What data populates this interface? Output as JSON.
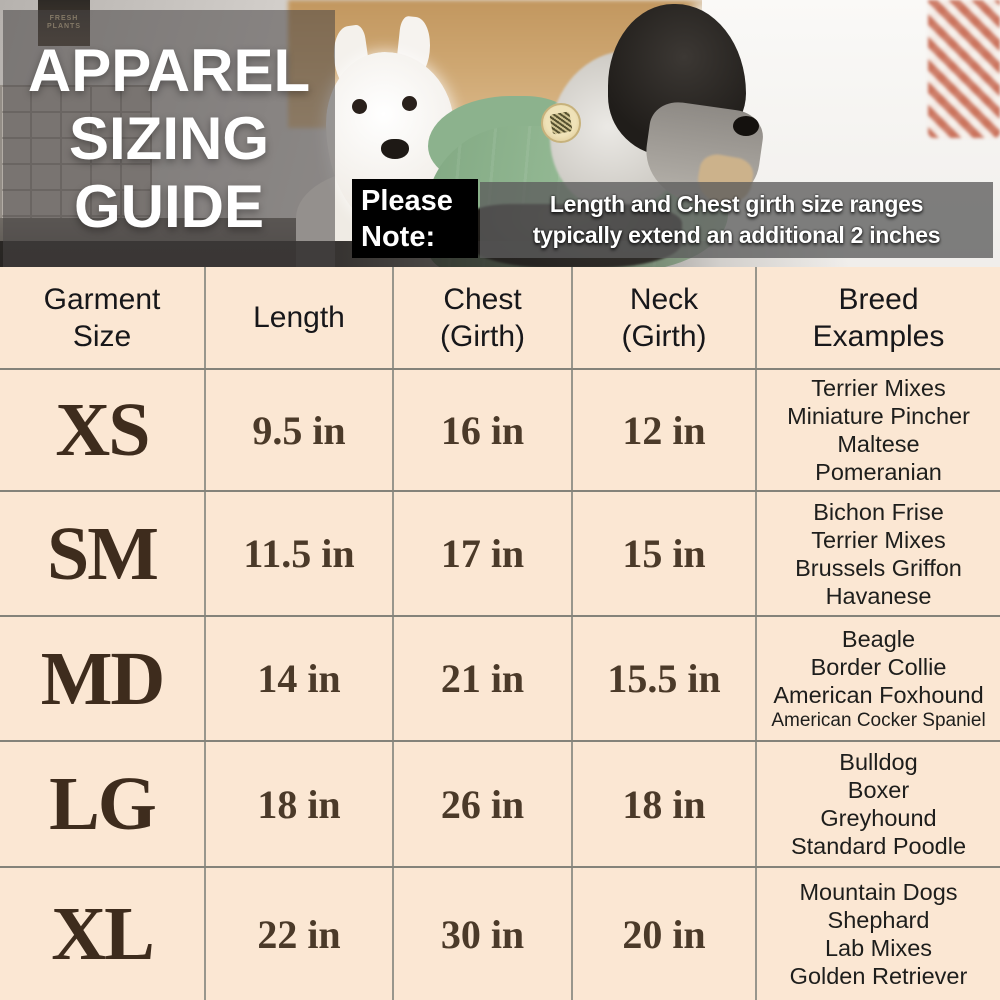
{
  "title": {
    "lines": [
      "APPAREL",
      "SIZING",
      "GUIDE"
    ]
  },
  "note": {
    "label": "Please Note:",
    "lines": [
      "Length and Chest girth size ranges",
      "typically extend an additional 2 inches"
    ]
  },
  "photo": {
    "sign_text": "FRESH\nPLANTS"
  },
  "table": {
    "headers": [
      [
        "Garment",
        "Size"
      ],
      [
        "Length"
      ],
      [
        "Chest",
        "(Girth)"
      ],
      [
        "Neck",
        "(Girth)"
      ],
      [
        "Breed",
        "Examples"
      ]
    ],
    "rows": [
      {
        "size": "XS",
        "length": "9.5 in",
        "chest": "16 in",
        "neck": "12 in",
        "breeds": [
          "Terrier Mixes",
          "Miniature Pincher",
          "Maltese",
          "Pomeranian"
        ]
      },
      {
        "size": "SM",
        "length": "11.5 in",
        "chest": "17 in",
        "neck": "15 in",
        "breeds": [
          "Bichon Frise",
          "Terrier Mixes",
          "Brussels Griffon",
          "Havanese"
        ]
      },
      {
        "size": "MD",
        "length": "14 in",
        "chest": "21 in",
        "neck": "15.5 in",
        "breeds": [
          "Beagle",
          "Border Collie",
          "American Foxhound",
          "American Cocker Spaniel"
        ]
      },
      {
        "size": "LG",
        "length": "18 in",
        "chest": "26 in",
        "neck": "18 in",
        "breeds": [
          "Bulldog",
          "Boxer",
          "Greyhound",
          "Standard Poodle"
        ]
      },
      {
        "size": "XL",
        "length": "22 in",
        "chest": "30 in",
        "neck": "20 in",
        "breeds": [
          "Mountain Dogs",
          "Shephard",
          "Lab Mixes",
          "Golden Retriever"
        ]
      }
    ]
  },
  "colors": {
    "table_background": "#fbe7d3",
    "size_text": "#3e2c1d",
    "value_text": "#4b3a29",
    "grid_line": "#8b8a80",
    "note_label_background": "#000000",
    "note_bar_background": "#5c5c5c",
    "title_overlay_gray": "#484645",
    "coat_green": "#91b592"
  }
}
